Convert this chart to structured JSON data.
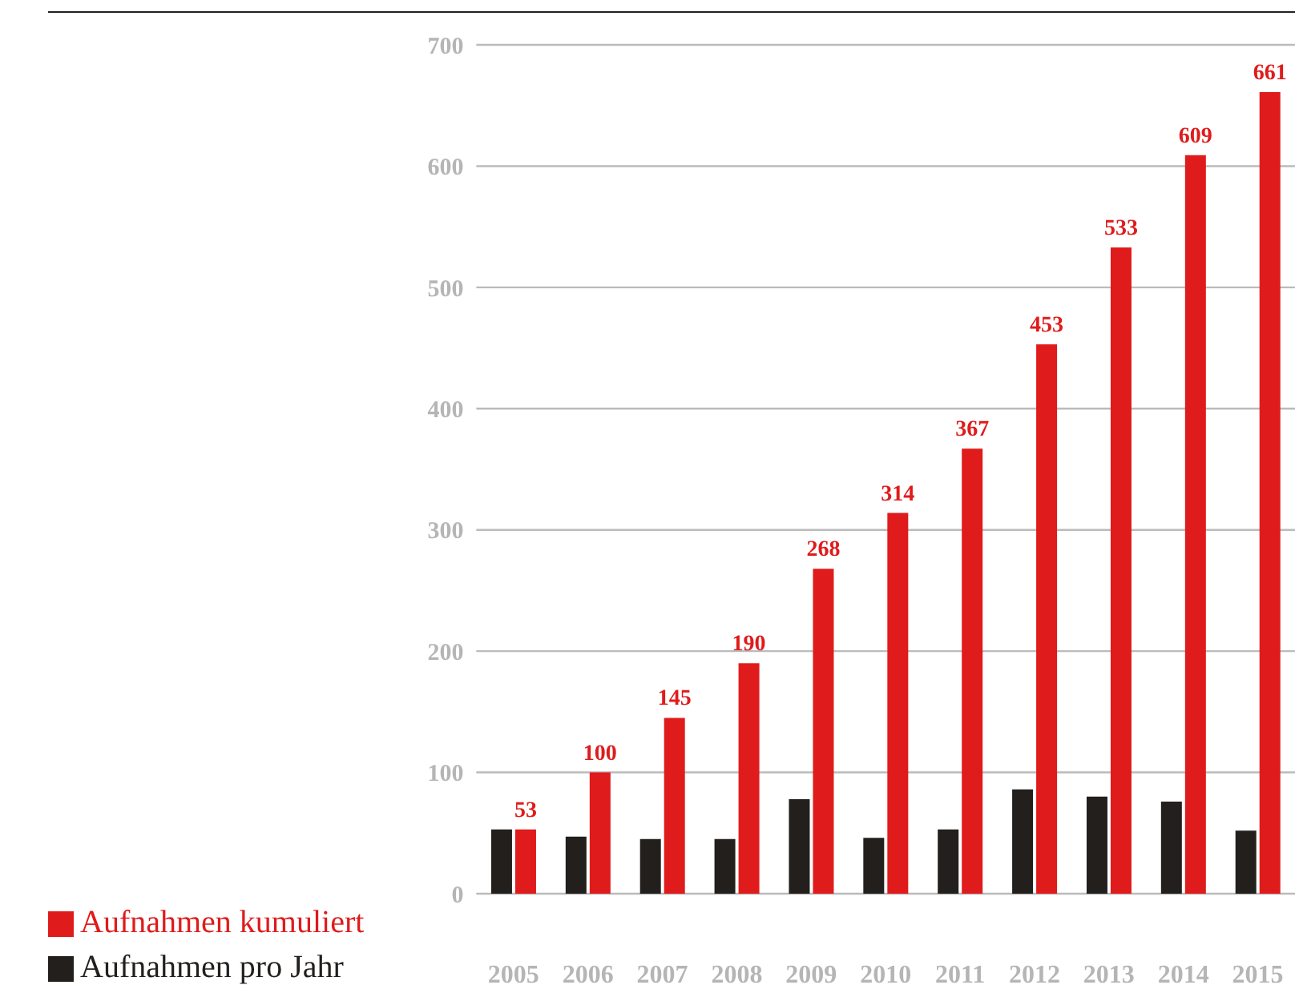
{
  "chart_data": {
    "type": "bar",
    "categories": [
      "2005",
      "2006",
      "2007",
      "2008",
      "2009",
      "2010",
      "2011",
      "2012",
      "2013",
      "2014",
      "2015"
    ],
    "series": [
      {
        "name": "Aufnahmen pro Jahr",
        "color": "#221f1c",
        "values": [
          53,
          47,
          45,
          45,
          78,
          46,
          53,
          86,
          80,
          76,
          52
        ]
      },
      {
        "name": "Aufnahmen kumuliert",
        "color": "#e01b1b",
        "values": [
          53,
          100,
          145,
          190,
          268,
          314,
          367,
          453,
          533,
          609,
          661
        ],
        "value_labels": [
          "53",
          "100",
          "145",
          "190",
          "268",
          "314",
          "367",
          "453",
          "533",
          "609",
          "661"
        ]
      }
    ],
    "ylim": [
      0,
      700
    ],
    "yticks": [
      0,
      100,
      200,
      300,
      400,
      500,
      600,
      700
    ],
    "grid": "y",
    "legend": "bottom left"
  }
}
